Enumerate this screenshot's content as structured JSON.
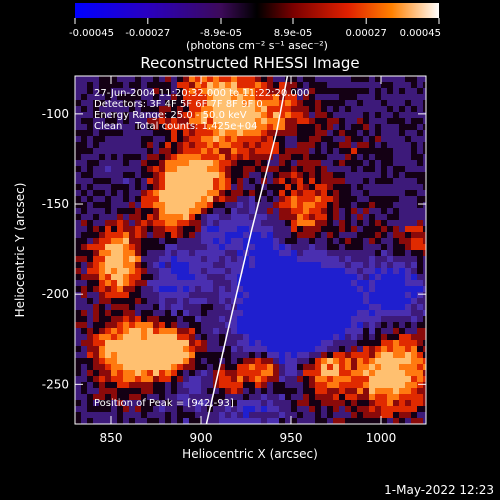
{
  "chart_data": {
    "type": "heatmap",
    "title": "Reconstructed RHESSI Image",
    "xlabel": "Heliocentric X (arcsec)",
    "ylabel": "Heliocentric Y (arcsec)",
    "xlim": [
      830,
      1025
    ],
    "ylim": [
      -272,
      -79
    ],
    "x_ticks": [
      850,
      900,
      950,
      1000
    ],
    "y_ticks": [
      -100,
      -150,
      -200,
      -250
    ],
    "colorbar": {
      "range": [
        -0.00045,
        0.00045
      ],
      "tick_labels": [
        "-0.00045",
        "-0.00027",
        "-8.9e-05",
        "8.9e-05",
        "0.00027",
        "0.00045"
      ],
      "unit_label": "(photons cm⁻² s⁻¹ asec⁻²)"
    },
    "info_lines": [
      "27-Jun-2004 11:20:32.000 to 11:22:20.000",
      "Detectors: 3F 4F 5F 6F 7F 8F 9F 0",
      "Energy Range: 25.0 - 50.0 keV",
      "Clean    Total counts: 1.425e+04"
    ],
    "peak_label": "Position of Peak = [942,-93]",
    "peak_position": [
      942,
      -93
    ],
    "limb_line": [
      [
        903,
        -272
      ],
      [
        915,
        -220
      ],
      [
        928,
        -165
      ],
      [
        942,
        -110
      ],
      [
        948,
        -79
      ]
    ]
  },
  "footer_timestamp": "1-May-2022 12:23"
}
